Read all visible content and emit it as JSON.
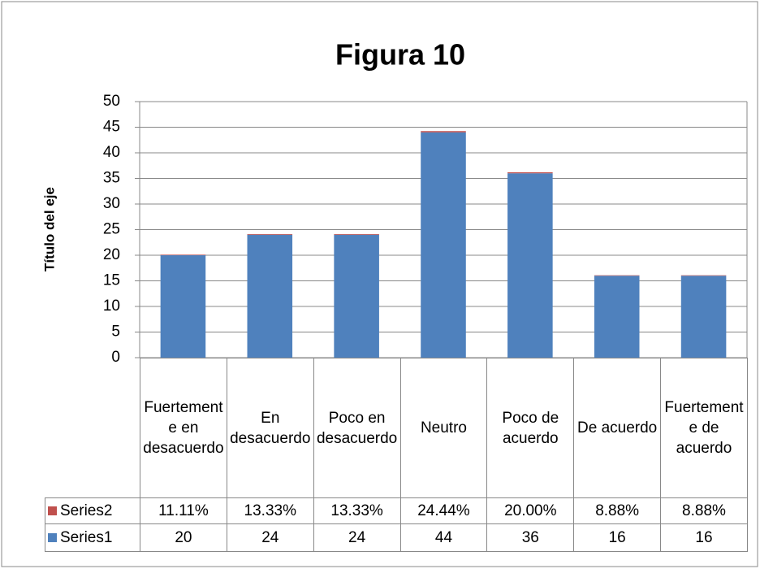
{
  "chart_data": {
    "type": "bar",
    "stacked": true,
    "title": "Figura 10",
    "y_label": "Título del eje",
    "categories": [
      "Fuertemente en desacuerdo",
      "En desacuerdo",
      "Poco en desacuerdo",
      "Neutro",
      "Poco de acuerdo",
      "De acuerdo",
      "Fuertemente de acuerdo"
    ],
    "series": [
      {
        "name": "Series1",
        "color": "#4f81bd",
        "values": [
          20,
          24,
          24,
          44,
          36,
          16,
          16
        ]
      },
      {
        "name": "Series2",
        "color": "#c0504d",
        "values": [
          0.1111,
          0.1333,
          0.1333,
          0.2444,
          0.2,
          0.0888,
          0.0888
        ],
        "value_labels": [
          "11.11%",
          "13.33%",
          "13.33%",
          "24.44%",
          "20.00%",
          "8.88%",
          "8.88%"
        ]
      }
    ],
    "ylim": [
      0,
      50
    ],
    "yticks": [
      0,
      5,
      10,
      15,
      20,
      25,
      30,
      35,
      40,
      45,
      50
    ],
    "grid": true
  }
}
